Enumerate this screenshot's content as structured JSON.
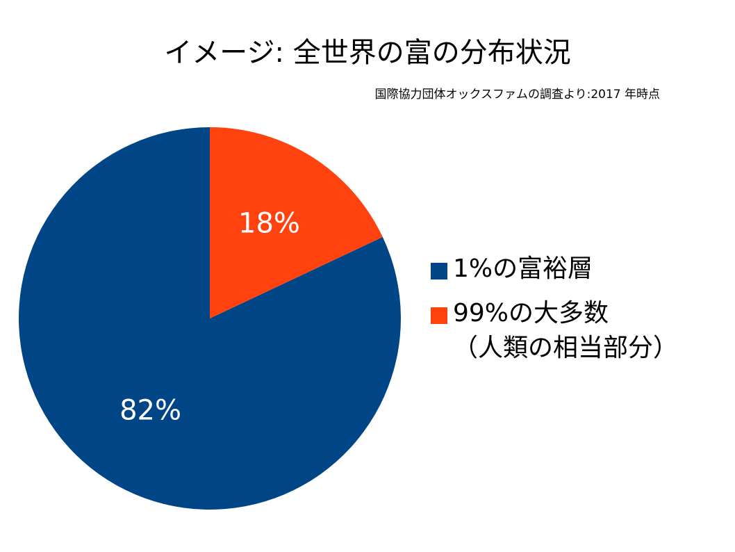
{
  "chart_data": {
    "type": "pie",
    "title": "イメージ: 全世界の富の分布状況",
    "subtitle": "国際協力団体オックスファムの調査より:2017 年時点",
    "startangle": 90,
    "counterclock": true,
    "series": [
      {
        "name": "1%の富裕層",
        "color": "#004586",
        "values": [
          82
        ],
        "value_labels": [
          "82%"
        ]
      },
      {
        "name": "99%の大多数\n（人類の相当部分）",
        "color": "#ff420e",
        "values": [
          18
        ],
        "value_labels": [
          "18%"
        ]
      }
    ],
    "legend": "right"
  }
}
